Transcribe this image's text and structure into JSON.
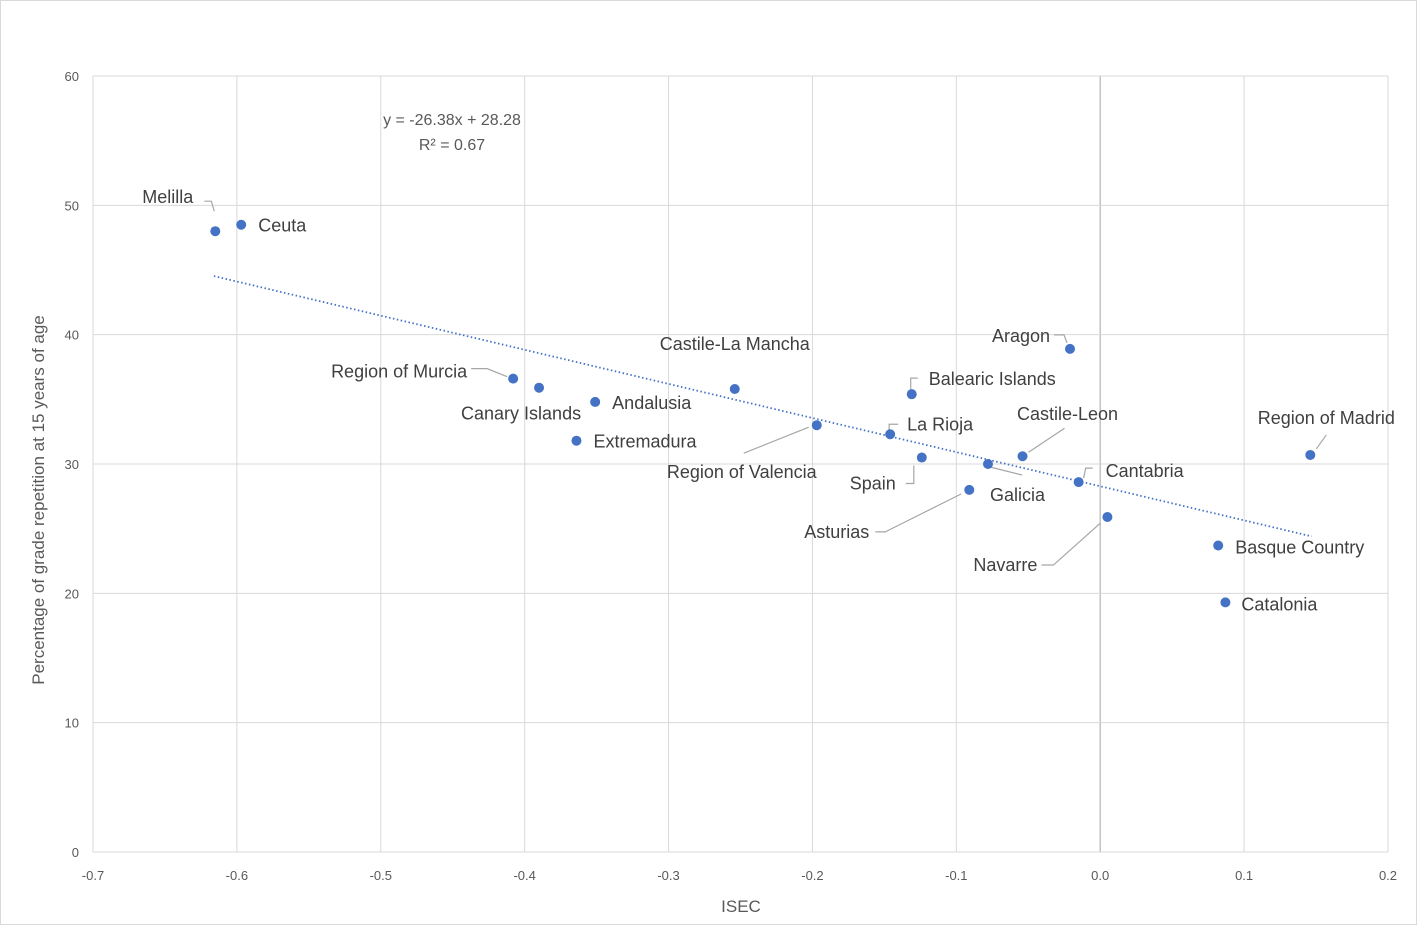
{
  "chart_data": {
    "type": "scatter",
    "xlabel": "ISEC",
    "ylabel": "Percentage of grade repetition at 15 years of age",
    "xlim": [
      -0.7,
      0.2
    ],
    "ylim": [
      0,
      60
    ],
    "x_ticks": [
      "-0.7",
      "-0.6",
      "-0.5",
      "-0.4",
      "-0.3",
      "-0.2",
      "-0.1",
      "0.0",
      "0.1",
      "0.2"
    ],
    "y_ticks": [
      "0",
      "10",
      "20",
      "30",
      "40",
      "50",
      "60"
    ],
    "grid": true,
    "series": [
      {
        "color": "#4472c4",
        "points": [
          {
            "label": "Melilla",
            "x": -0.615,
            "y": 48.0
          },
          {
            "label": "Ceuta",
            "x": -0.597,
            "y": 48.5
          },
          {
            "label": "Region of Murcia",
            "x": -0.408,
            "y": 36.6
          },
          {
            "label": "Canary Islands",
            "x": -0.39,
            "y": 35.9
          },
          {
            "label": "Andalusia",
            "x": -0.351,
            "y": 34.8
          },
          {
            "label": "Extremadura",
            "x": -0.364,
            "y": 31.8
          },
          {
            "label": "Castile-La Mancha",
            "x": -0.254,
            "y": 35.8
          },
          {
            "label": "Region of Valencia",
            "x": -0.197,
            "y": 33.0
          },
          {
            "label": "Balearic Islands",
            "x": -0.131,
            "y": 35.4
          },
          {
            "label": "La Rioja",
            "x": -0.146,
            "y": 32.3
          },
          {
            "label": "Spain",
            "x": -0.124,
            "y": 30.5
          },
          {
            "label": "Asturias",
            "x": -0.091,
            "y": 28.0
          },
          {
            "label": "Galicia",
            "x": -0.078,
            "y": 30.0
          },
          {
            "label": "Castile-Leon",
            "x": -0.054,
            "y": 30.6
          },
          {
            "label": "Aragon",
            "x": -0.021,
            "y": 38.9
          },
          {
            "label": "Cantabria",
            "x": -0.015,
            "y": 28.6
          },
          {
            "label": "Navarre",
            "x": 0.005,
            "y": 25.9
          },
          {
            "label": "Basque Country",
            "x": 0.082,
            "y": 23.7
          },
          {
            "label": "Catalonia",
            "x": 0.087,
            "y": 19.3
          },
          {
            "label": "Region of Madrid",
            "x": 0.146,
            "y": 30.7
          }
        ]
      }
    ],
    "trendline": {
      "type": "linear",
      "slope": -26.38,
      "intercept": 28.28,
      "x_range": [
        -0.615,
        0.146
      ],
      "color": "#4472c4",
      "style": "dotted",
      "equation_text": "y = -26.38x + 28.28",
      "r2_text": "R² = 0.67"
    }
  }
}
